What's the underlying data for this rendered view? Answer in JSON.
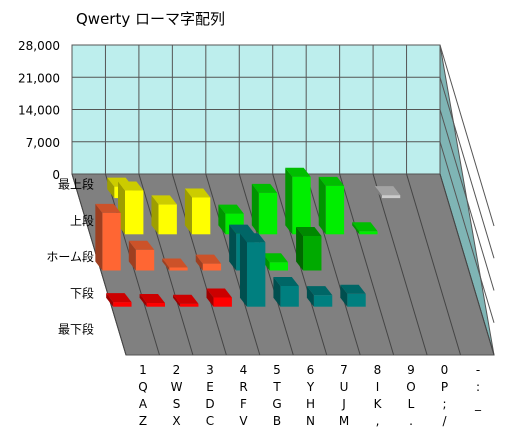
{
  "chart_data": {
    "type": "bar",
    "title": "Qwerty ローマ字配列",
    "xlabel": "",
    "ylabel": "",
    "ylim": [
      0,
      28000
    ],
    "y_ticks": [
      "0",
      "7,000",
      "14,000",
      "21,000",
      "28,000"
    ],
    "y_tick_values": [
      0,
      7000,
      14000,
      21000,
      28000
    ],
    "grid": true,
    "rows": [
      "最上段",
      "上段",
      "ホーム段",
      "下段",
      "最下段"
    ],
    "columns": [
      [
        "1",
        "Q",
        "A",
        "Z"
      ],
      [
        "2",
        "W",
        "S",
        "X"
      ],
      [
        "3",
        "E",
        "D",
        "C"
      ],
      [
        "4",
        "R",
        "F",
        "V"
      ],
      [
        "5",
        "T",
        "G",
        "B"
      ],
      [
        "6",
        "Y",
        "H",
        "N"
      ],
      [
        "7",
        "U",
        "J",
        "M"
      ],
      [
        "8",
        "I",
        "K",
        ","
      ],
      [
        "9",
        "O",
        "L",
        "."
      ],
      [
        "0",
        "P",
        ";",
        "/"
      ],
      [
        "-",
        ":",
        "_",
        ""
      ]
    ],
    "values": [
      [
        0,
        2500,
        0,
        0,
        0,
        0,
        0,
        0,
        0,
        300,
        0
      ],
      [
        0,
        9500,
        6500,
        8000,
        4500,
        9000,
        12500,
        10500,
        300,
        0,
        0
      ],
      [
        12500,
        4500,
        600,
        1500,
        8000,
        1800,
        7500,
        0,
        0,
        0,
        0
      ],
      [
        1000,
        800,
        600,
        2000,
        14000,
        4500,
        2500,
        2800,
        0,
        0,
        0
      ],
      [
        0,
        0,
        0,
        0,
        0,
        0,
        0,
        0,
        0,
        0,
        0
      ]
    ],
    "series": [
      {
        "name": "",
        "color": "#ff6633"
      },
      {
        "name": "",
        "color": "#ffff00"
      },
      {
        "name": "",
        "color": "#33ee33"
      },
      {
        "name": "",
        "color": "#00aa00"
      },
      {
        "name": "",
        "color": "#00ff00"
      },
      {
        "name": "",
        "color": "#007f7f"
      },
      {
        "name": "",
        "color": "#ff0000"
      },
      {
        "name": "",
        "color": "#cccccc"
      }
    ],
    "cell_colors": [
      [
        null,
        "yellow",
        null,
        null,
        null,
        null,
        null,
        null,
        null,
        "gray",
        null
      ],
      [
        null,
        "yellow",
        "yellow",
        "yellow",
        "green",
        "green",
        "green",
        "green",
        "green",
        null,
        null
      ],
      [
        "orange",
        "orange",
        "orange",
        "orange",
        "teal",
        "green",
        "dark-green",
        null,
        null,
        null,
        null
      ],
      [
        "red",
        "red",
        "red",
        "red",
        "teal",
        "teal",
        "teal",
        "teal",
        null,
        null,
        null
      ],
      [
        null,
        null,
        null,
        null,
        null,
        null,
        null,
        null,
        null,
        null,
        null
      ]
    ],
    "palette": {
      "orange": "#ff6633",
      "yellow": "#ffff00",
      "green": "#00ee00",
      "dark-green": "#00aa00",
      "teal": "#007f7f",
      "red": "#ff0000",
      "gray": "#cccccc",
      "wall": "#bdeeed",
      "floor": "#808080",
      "side-wall": "#7fb5b5"
    }
  }
}
